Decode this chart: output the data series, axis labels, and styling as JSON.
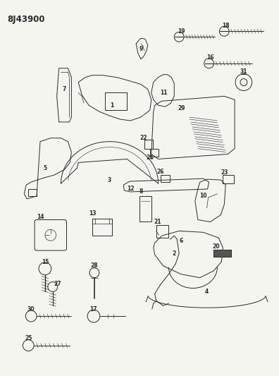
{
  "title": "8J43900",
  "bg": "#f5f5f0",
  "fg": "#2a2a2a",
  "fig_w": 3.96,
  "fig_h": 5.33,
  "dpi": 100,
  "label_fs": 5.5,
  "title_fs": 8.5
}
